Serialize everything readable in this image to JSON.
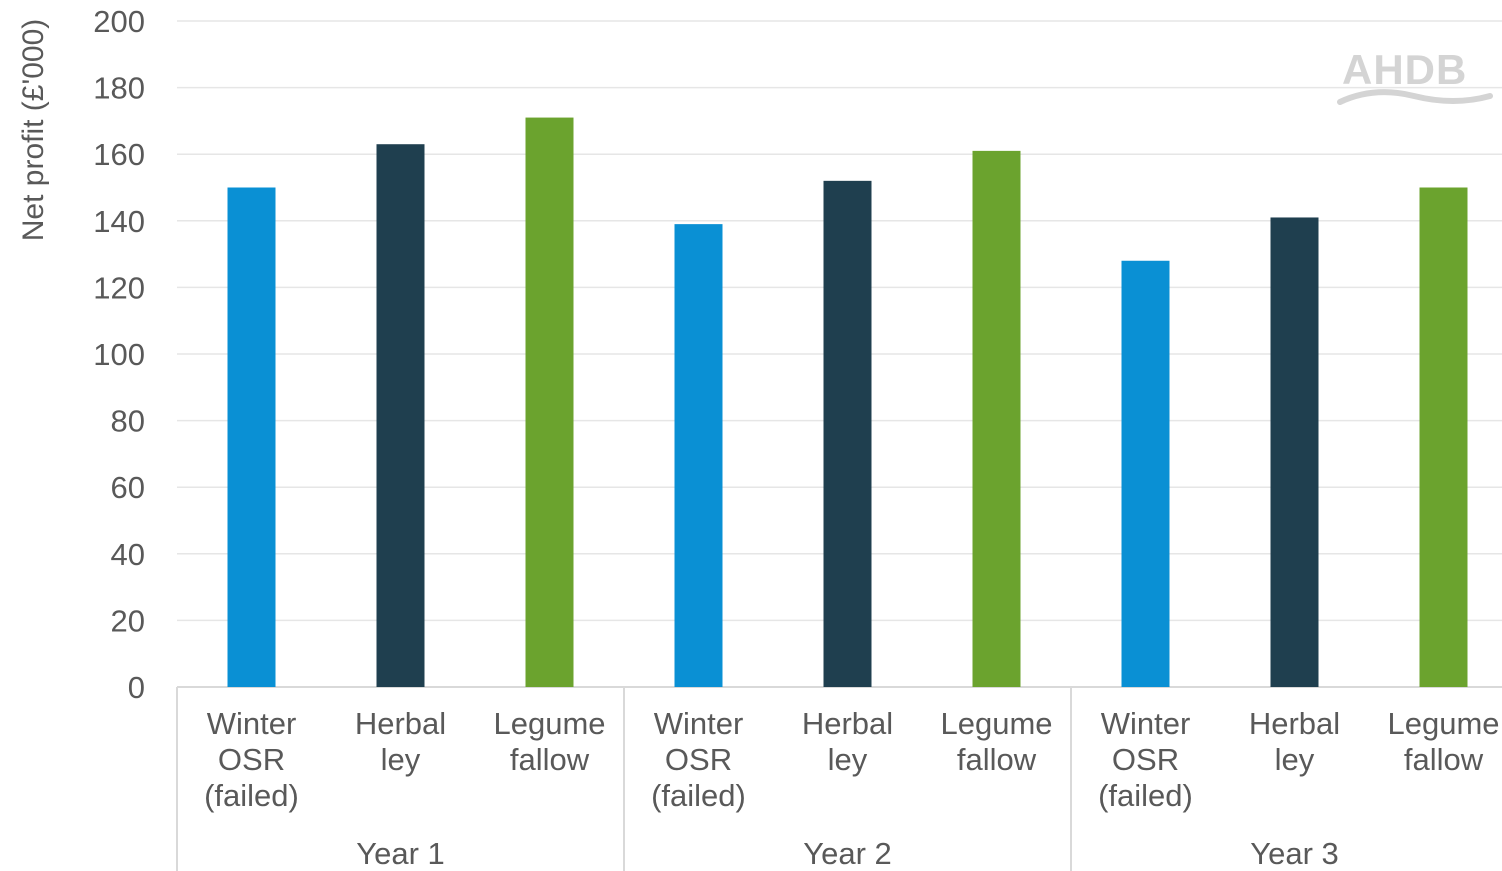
{
  "chart_data": {
    "type": "bar",
    "title": "",
    "ylabel": "Net profit  (£'000)",
    "xlabel": "",
    "ylim": [
      0,
      200
    ],
    "yticks": [
      0,
      20,
      40,
      60,
      80,
      100,
      120,
      140,
      160,
      180,
      200
    ],
    "grid": true,
    "groups": [
      {
        "label": "Year 1",
        "bars": [
          {
            "category": [
              "Winter",
              "OSR",
              "(failed)"
            ],
            "value": 150,
            "color": "#0a90d4"
          },
          {
            "category": [
              "Herbal",
              "ley"
            ],
            "value": 163,
            "color": "#1f3f4f"
          },
          {
            "category": [
              "Legume",
              "fallow"
            ],
            "value": 171,
            "color": "#6ba32e"
          }
        ]
      },
      {
        "label": "Year 2",
        "bars": [
          {
            "category": [
              "Winter",
              "OSR",
              "(failed)"
            ],
            "value": 139,
            "color": "#0a90d4"
          },
          {
            "category": [
              "Herbal",
              "ley"
            ],
            "value": 152,
            "color": "#1f3f4f"
          },
          {
            "category": [
              "Legume",
              "fallow"
            ],
            "value": 161,
            "color": "#6ba32e"
          }
        ]
      },
      {
        "label": "Year 3",
        "bars": [
          {
            "category": [
              "Winter",
              "OSR",
              "(failed)"
            ],
            "value": 128,
            "color": "#0a90d4"
          },
          {
            "category": [
              "Herbal",
              "ley"
            ],
            "value": 141,
            "color": "#1f3f4f"
          },
          {
            "category": [
              "Legume",
              "fallow"
            ],
            "value": 150,
            "color": "#6ba32e"
          }
        ]
      }
    ]
  },
  "logo": {
    "text": "AHDB",
    "color": "#d4d4d4"
  },
  "colors": {
    "gridline": "#e6e6e6",
    "axis": "#d9d9d9",
    "tick_text": "#595959"
  }
}
